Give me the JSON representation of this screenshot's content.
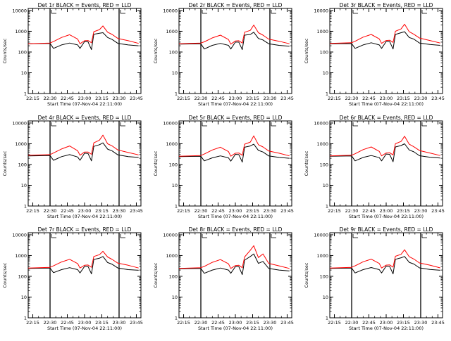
{
  "colors": {
    "events": "#000000",
    "lld": "#ff0000",
    "background": "#ffffff",
    "axes": "#000000"
  },
  "chart_data": [
    {
      "type": "line",
      "title": "Det 1r BLACK = Events, RED = LLD",
      "xlabel": "Start Time (07-Nov-04 22:11:00)",
      "ylabel": "Counts/sec",
      "x_tick_labels": [
        "22:15",
        "22:30",
        "22:45",
        "23:00",
        "23:15",
        "23:30",
        "23:45"
      ],
      "y_tick_labels": [
        "1",
        "10",
        "100",
        "1000",
        "10000"
      ],
      "y_scale": "log",
      "ylim": [
        1,
        10000
      ],
      "markers": [
        "22:30",
        "23:30"
      ],
      "series": [
        {
          "color": "#000000",
          "x": [
            "22:11",
            "22:30",
            "22:33",
            "22:40",
            "22:47",
            "22:54",
            "22:56",
            "23:00",
            "23:03",
            "23:06",
            "23:08",
            "23:13",
            "23:16",
            "23:20",
            "23:24",
            "23:29",
            "23:38",
            "23:47"
          ],
          "values": [
            250,
            260,
            150,
            220,
            270,
            220,
            150,
            320,
            310,
            130,
            720,
            800,
            850,
            500,
            400,
            260,
            220,
            200
          ]
        },
        {
          "color": "#ff0000",
          "x": [
            "22:11",
            "22:30",
            "22:33",
            "22:40",
            "22:47",
            "22:54",
            "22:56",
            "23:00",
            "23:03",
            "23:06",
            "23:08",
            "23:13",
            "23:16",
            "23:20",
            "23:24",
            "23:29",
            "23:38",
            "23:47"
          ],
          "values": [
            250,
            270,
            320,
            500,
            680,
            420,
            250,
            350,
            360,
            280,
            950,
            1200,
            1800,
            900,
            700,
            450,
            350,
            260
          ]
        }
      ]
    },
    {
      "type": "line",
      "title": "Det 2r BLACK = Events, RED = LLD",
      "xlabel": "Start Time (07-Nov-04 22:11:00)",
      "ylabel": "Counts/sec",
      "x_tick_labels": [
        "22:15",
        "22:30",
        "22:45",
        "23:00",
        "23:15",
        "23:30",
        "23:45"
      ],
      "y_tick_labels": [
        "1",
        "10",
        "100",
        "1000",
        "10000"
      ],
      "y_scale": "log",
      "ylim": [
        1,
        10000
      ],
      "markers": [
        "22:30",
        "23:30"
      ],
      "series": [
        {
          "color": "#000000",
          "x": [
            "22:11",
            "22:30",
            "22:33",
            "22:40",
            "22:47",
            "22:54",
            "22:56",
            "23:00",
            "23:03",
            "23:06",
            "23:08",
            "23:13",
            "23:16",
            "23:20",
            "23:24",
            "23:29",
            "23:38",
            "23:47"
          ],
          "values": [
            240,
            250,
            140,
            210,
            260,
            210,
            140,
            300,
            300,
            130,
            650,
            700,
            900,
            450,
            380,
            250,
            210,
            190
          ]
        },
        {
          "color": "#ff0000",
          "x": [
            "22:11",
            "22:30",
            "22:33",
            "22:40",
            "22:47",
            "22:54",
            "22:56",
            "23:00",
            "23:03",
            "23:06",
            "23:08",
            "23:13",
            "23:16",
            "23:20",
            "23:24",
            "23:29",
            "23:38",
            "23:47"
          ],
          "values": [
            250,
            270,
            310,
            480,
            650,
            400,
            240,
            340,
            350,
            270,
            900,
            1100,
            2000,
            850,
            650,
            420,
            330,
            250
          ]
        }
      ]
    },
    {
      "type": "line",
      "title": "Det 3r BLACK = Events, RED = LLD",
      "xlabel": "Start Time (07-Nov-04 22:11:00)",
      "ylabel": "Counts/sec",
      "x_tick_labels": [
        "22:15",
        "22:30",
        "22:45",
        "23:00",
        "23:15",
        "23:30",
        "23:45"
      ],
      "y_tick_labels": [
        "1",
        "10",
        "100",
        "1000",
        "10000"
      ],
      "y_scale": "log",
      "ylim": [
        1,
        10000
      ],
      "markers": [
        "22:30",
        "23:30"
      ],
      "series": [
        {
          "color": "#000000",
          "x": [
            "22:11",
            "22:30",
            "22:33",
            "22:40",
            "22:47",
            "22:54",
            "22:56",
            "23:00",
            "23:03",
            "23:06",
            "23:08",
            "23:13",
            "23:16",
            "23:20",
            "23:24",
            "23:29",
            "23:38",
            "23:47"
          ],
          "values": [
            250,
            255,
            150,
            220,
            280,
            220,
            150,
            320,
            320,
            140,
            700,
            850,
            950,
            500,
            420,
            270,
            230,
            210
          ]
        },
        {
          "color": "#ff0000",
          "x": [
            "22:11",
            "22:30",
            "22:33",
            "22:40",
            "22:47",
            "22:54",
            "22:56",
            "23:00",
            "23:03",
            "23:06",
            "23:08",
            "23:13",
            "23:16",
            "23:20",
            "23:24",
            "23:29",
            "23:38",
            "23:47"
          ],
          "values": [
            260,
            280,
            330,
            520,
            700,
            430,
            260,
            360,
            370,
            290,
            1000,
            1300,
            2200,
            950,
            720,
            470,
            360,
            270
          ]
        }
      ]
    },
    {
      "type": "line",
      "title": "Det 4r BLACK = Events, RED = LLD",
      "xlabel": "Start Time (07-Nov-04 22:11:00)",
      "ylabel": "Counts/sec",
      "x_tick_labels": [
        "22:15",
        "22:30",
        "22:45",
        "23:00",
        "23:15",
        "23:30",
        "23:45"
      ],
      "y_tick_labels": [
        "1",
        "10",
        "100",
        "1000",
        "10000"
      ],
      "y_scale": "log",
      "ylim": [
        1,
        10000
      ],
      "markers": [
        "22:30",
        "23:30"
      ],
      "series": [
        {
          "color": "#000000",
          "x": [
            "22:11",
            "22:30",
            "22:33",
            "22:40",
            "22:47",
            "22:54",
            "22:56",
            "23:00",
            "23:03",
            "23:06",
            "23:08",
            "23:13",
            "23:16",
            "23:20",
            "23:24",
            "23:29",
            "23:38",
            "23:47"
          ],
          "values": [
            260,
            270,
            160,
            240,
            300,
            230,
            160,
            350,
            340,
            150,
            750,
            900,
            1100,
            550,
            450,
            290,
            240,
            220
          ]
        },
        {
          "color": "#ff0000",
          "x": [
            "22:11",
            "22:30",
            "22:33",
            "22:40",
            "22:47",
            "22:54",
            "22:56",
            "23:00",
            "23:03",
            "23:06",
            "23:08",
            "23:13",
            "23:16",
            "23:20",
            "23:24",
            "23:29",
            "23:38",
            "23:47"
          ],
          "values": [
            280,
            300,
            360,
            560,
            780,
            460,
            280,
            400,
            400,
            310,
            1100,
            1500,
            2600,
            1000,
            780,
            500,
            380,
            290
          ]
        }
      ]
    },
    {
      "type": "line",
      "title": "Det 5r BLACK = Events, RED = LLD",
      "xlabel": "Start Time (07-Nov-04 22:11:00)",
      "ylabel": "Counts/sec",
      "x_tick_labels": [
        "22:15",
        "22:30",
        "22:45",
        "23:00",
        "23:15",
        "23:30",
        "23:45"
      ],
      "y_tick_labels": [
        "1",
        "10",
        "100",
        "1000",
        "10000"
      ],
      "y_scale": "log",
      "ylim": [
        1,
        10000
      ],
      "markers": [
        "22:30",
        "23:30"
      ],
      "series": [
        {
          "color": "#000000",
          "x": [
            "22:11",
            "22:30",
            "22:33",
            "22:40",
            "22:47",
            "22:54",
            "22:56",
            "23:00",
            "23:03",
            "23:06",
            "23:08",
            "23:13",
            "23:16",
            "23:20",
            "23:24",
            "23:29",
            "23:38",
            "23:47"
          ],
          "values": [
            240,
            250,
            150,
            210,
            260,
            210,
            145,
            310,
            300,
            130,
            680,
            780,
            950,
            480,
            400,
            260,
            220,
            200
          ]
        },
        {
          "color": "#ff0000",
          "x": [
            "22:11",
            "22:30",
            "22:33",
            "22:40",
            "22:47",
            "22:54",
            "22:56",
            "23:00",
            "23:03",
            "23:06",
            "23:08",
            "23:13",
            "23:16",
            "23:20",
            "23:24",
            "23:29",
            "23:38",
            "23:47"
          ],
          "values": [
            250,
            270,
            320,
            500,
            680,
            420,
            250,
            350,
            360,
            280,
            950,
            1200,
            2400,
            900,
            700,
            450,
            350,
            260
          ]
        }
      ]
    },
    {
      "type": "line",
      "title": "Det 6r BLACK = Events, RED = LLD",
      "xlabel": "Start Time (07-Nov-04 22:11:00)",
      "ylabel": "Counts/sec",
      "x_tick_labels": [
        "22:15",
        "22:30",
        "22:45",
        "23:00",
        "23:15",
        "23:30",
        "23:45"
      ],
      "y_tick_labels": [
        "1",
        "10",
        "100",
        "1000",
        "10000"
      ],
      "y_scale": "log",
      "ylim": [
        1,
        10000
      ],
      "markers": [
        "22:30",
        "23:30"
      ],
      "series": [
        {
          "color": "#000000",
          "x": [
            "22:11",
            "22:30",
            "22:33",
            "22:40",
            "22:47",
            "22:54",
            "22:56",
            "23:00",
            "23:03",
            "23:06",
            "23:08",
            "23:13",
            "23:16",
            "23:20",
            "23:24",
            "23:29",
            "23:38",
            "23:47"
          ],
          "values": [
            250,
            260,
            150,
            220,
            270,
            215,
            150,
            320,
            310,
            135,
            700,
            820,
            1000,
            500,
            410,
            265,
            225,
            205
          ]
        },
        {
          "color": "#ff0000",
          "x": [
            "22:11",
            "22:30",
            "22:33",
            "22:40",
            "22:47",
            "22:54",
            "22:56",
            "23:00",
            "23:03",
            "23:06",
            "23:08",
            "23:13",
            "23:16",
            "23:20",
            "23:24",
            "23:29",
            "23:38",
            "23:47"
          ],
          "values": [
            260,
            280,
            330,
            520,
            700,
            430,
            260,
            360,
            370,
            290,
            1000,
            1300,
            2300,
            950,
            720,
            470,
            360,
            270
          ]
        }
      ]
    },
    {
      "type": "line",
      "title": "Det 7r BLACK = Events, RED = LLD",
      "xlabel": "Start Time (07-Nov-04 22:11:00)",
      "ylabel": "Counts/sec",
      "x_tick_labels": [
        "22:15",
        "22:30",
        "22:45",
        "23:00",
        "23:15",
        "23:30",
        "23:45"
      ],
      "y_tick_labels": [
        "1",
        "10",
        "100",
        "1000",
        "10000"
      ],
      "y_scale": "log",
      "ylim": [
        1,
        10000
      ],
      "markers": [
        "22:30",
        "23:30"
      ],
      "series": [
        {
          "color": "#000000",
          "x": [
            "22:11",
            "22:30",
            "22:33",
            "22:40",
            "22:47",
            "22:54",
            "22:56",
            "23:00",
            "23:03",
            "23:06",
            "23:08",
            "23:13",
            "23:16",
            "23:20",
            "23:24",
            "23:29",
            "23:38",
            "23:47"
          ],
          "values": [
            240,
            250,
            150,
            210,
            260,
            210,
            145,
            300,
            300,
            130,
            650,
            750,
            900,
            460,
            380,
            250,
            210,
            195
          ]
        },
        {
          "color": "#ff0000",
          "x": [
            "22:11",
            "22:30",
            "22:33",
            "22:40",
            "22:47",
            "22:54",
            "22:56",
            "23:00",
            "23:03",
            "23:06",
            "23:08",
            "23:13",
            "23:16",
            "23:20",
            "23:24",
            "23:29",
            "23:38",
            "23:47"
          ],
          "values": [
            250,
            270,
            320,
            490,
            660,
            410,
            250,
            340,
            350,
            270,
            900,
            1100,
            1600,
            850,
            650,
            430,
            340,
            250
          ]
        }
      ]
    },
    {
      "type": "line",
      "title": "Det 8r BLACK = Events, RED = LLD",
      "xlabel": "Start Time (07-Nov-04 22:11:00)",
      "ylabel": "Counts/sec",
      "x_tick_labels": [
        "22:15",
        "22:30",
        "22:45",
        "23:00",
        "23:15",
        "23:30",
        "23:45"
      ],
      "y_tick_labels": [
        "1",
        "10",
        "100",
        "1000",
        "10000"
      ],
      "y_scale": "log",
      "ylim": [
        1,
        10000
      ],
      "markers": [
        "22:30",
        "23:30"
      ],
      "series": [
        {
          "color": "#000000",
          "x": [
            "22:11",
            "22:30",
            "22:33",
            "22:40",
            "22:47",
            "22:54",
            "22:56",
            "23:00",
            "23:03",
            "23:06",
            "23:08",
            "23:13",
            "23:16",
            "23:20",
            "23:24",
            "23:29",
            "23:38",
            "23:47"
          ],
          "values": [
            230,
            240,
            140,
            200,
            250,
            200,
            140,
            290,
            290,
            120,
            600,
            900,
            1200,
            420,
            520,
            240,
            200,
            180
          ]
        },
        {
          "color": "#ff0000",
          "x": [
            "22:11",
            "22:30",
            "22:33",
            "22:40",
            "22:47",
            "22:54",
            "22:56",
            "23:00",
            "23:03",
            "23:06",
            "23:08",
            "23:13",
            "23:16",
            "23:20",
            "23:24",
            "23:29",
            "23:38",
            "23:47"
          ],
          "values": [
            240,
            260,
            300,
            470,
            640,
            400,
            240,
            330,
            340,
            260,
            850,
            1800,
            3000,
            800,
            1200,
            420,
            320,
            240
          ]
        }
      ]
    },
    {
      "type": "line",
      "title": "Det 9r BLACK = Events, RED = LLD",
      "xlabel": "Start Time (07-Nov-04 22:11:00)",
      "ylabel": "Counts/sec",
      "x_tick_labels": [
        "22:15",
        "22:30",
        "22:45",
        "23:00",
        "23:15",
        "23:30",
        "23:45"
      ],
      "y_tick_labels": [
        "1",
        "10",
        "100",
        "1000",
        "10000"
      ],
      "y_scale": "log",
      "ylim": [
        1,
        10000
      ],
      "markers": [
        "22:30",
        "23:30"
      ],
      "series": [
        {
          "color": "#000000",
          "x": [
            "22:11",
            "22:30",
            "22:33",
            "22:40",
            "22:47",
            "22:54",
            "22:56",
            "23:00",
            "23:03",
            "23:06",
            "23:08",
            "23:13",
            "23:16",
            "23:20",
            "23:24",
            "23:29",
            "23:38",
            "23:47"
          ],
          "values": [
            240,
            250,
            145,
            210,
            265,
            210,
            145,
            310,
            300,
            130,
            660,
            780,
            900,
            470,
            390,
            255,
            215,
            195
          ]
        },
        {
          "color": "#ff0000",
          "x": [
            "22:11",
            "22:30",
            "22:33",
            "22:40",
            "22:47",
            "22:54",
            "22:56",
            "23:00",
            "23:03",
            "23:06",
            "23:08",
            "23:13",
            "23:16",
            "23:20",
            "23:24",
            "23:29",
            "23:38",
            "23:47"
          ],
          "values": [
            250,
            270,
            320,
            500,
            670,
            415,
            250,
            345,
            355,
            275,
            920,
            1150,
            1900,
            880,
            680,
            440,
            345,
            255
          ]
        }
      ]
    }
  ]
}
